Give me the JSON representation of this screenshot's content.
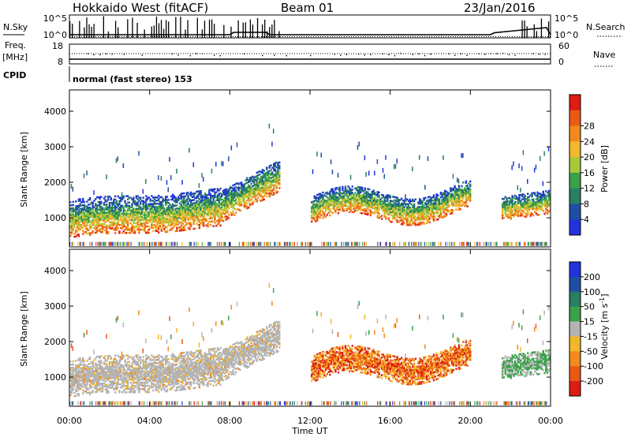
{
  "header": {
    "station": "Hokkaido West (fitACF)",
    "beam": "Beam 01",
    "date": "23/Jan/2016"
  },
  "top_panels": {
    "nsky_label": "N.Sky",
    "nsearch_label": "N.Search",
    "freq_label": "Freq.",
    "freq_unit": "[MHz]",
    "nave_label": "Nave",
    "cpid_label": "CPID",
    "cpid_text": "normal (fast stereo) 153",
    "nsky_ticks": [
      "10^5",
      "10^0"
    ],
    "nsearch_ticks": [
      "10^5",
      "10^0"
    ],
    "freq_ticks": [
      "18",
      "8"
    ],
    "nave_ticks": [
      "60",
      "0"
    ]
  },
  "colors": {
    "power_scale": [
      "#2233dd",
      "#1f4ea6",
      "#2a7e62",
      "#3aa24a",
      "#a8c83a",
      "#f0b82a",
      "#f08a1e",
      "#ea5a14",
      "#dd1c14"
    ],
    "velocity_scale": [
      "#2233dd",
      "#1f4ea6",
      "#2a7e62",
      "#3aa24a",
      "#b4b4b4",
      "#f0b82a",
      "#f08a1e",
      "#ea5a14",
      "#dd1c14"
    ]
  },
  "chart_data": [
    {
      "type": "heatmap",
      "title": "Power",
      "xlabel": "",
      "ylabel": "Slant Range [km]",
      "x_ticks": [
        "00:00",
        "04:00",
        "08:00",
        "12:00",
        "16:00",
        "20:00",
        "00:00"
      ],
      "y_ticks": [
        1000,
        2000,
        3000,
        4000
      ],
      "ylim": [
        180,
        4600
      ],
      "x_range_hours": [
        0,
        24
      ],
      "colorbar": {
        "label": "Power [dB]",
        "ticks": [
          4,
          8,
          12,
          16,
          20,
          24,
          28
        ],
        "range": [
          0,
          32
        ]
      },
      "echo_bands": [
        {
          "t": [
            0.0,
            7.5
          ],
          "range_km": [
            700,
            1700
          ],
          "dominant": "mixed 10-28 dB"
        },
        {
          "t": [
            7.5,
            10.5
          ],
          "range_km": [
            1100,
            2500
          ],
          "dominant": "mixed 8-24 dB"
        },
        {
          "t": [
            12.0,
            20.0
          ],
          "range_km": [
            800,
            1900
          ],
          "dominant": "mixed 8-24 dB"
        },
        {
          "t": [
            21.5,
            24.0
          ],
          "range_km": [
            900,
            1600
          ],
          "dominant": "mixed 8-24 dB"
        }
      ]
    },
    {
      "type": "heatmap",
      "title": "Velocity",
      "xlabel": "Time UT",
      "ylabel": "Slant Range [km]",
      "x_ticks": [
        "00:00",
        "04:00",
        "08:00",
        "12:00",
        "16:00",
        "20:00",
        "00:00"
      ],
      "y_ticks": [
        1000,
        2000,
        3000,
        4000
      ],
      "ylim": [
        180,
        4600
      ],
      "x_range_hours": [
        0,
        24
      ],
      "colorbar": {
        "label": "Velocity [m s",
        "label_sup": "-1",
        "label_end": "]",
        "ticks": [
          200,
          100,
          50,
          15,
          -15,
          -50,
          -100,
          -200
        ],
        "range": [
          -250,
          250
        ]
      },
      "echo_bands": [
        {
          "t": [
            0.0,
            10.0
          ],
          "range_km": [
            800,
            1900
          ],
          "dominant": "ground scatter"
        },
        {
          "t": [
            12.0,
            20.0
          ],
          "range_km": [
            800,
            1900
          ],
          "dominant": "-15 to -200 m/s"
        },
        {
          "t": [
            21.5,
            24.0
          ],
          "range_km": [
            1000,
            1700
          ],
          "dominant": "15 to 50 m/s"
        }
      ]
    }
  ]
}
